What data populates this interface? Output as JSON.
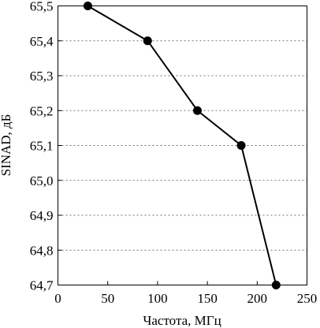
{
  "chart_data": {
    "type": "line",
    "xlabel": "Частота, МГц",
    "ylabel": "SINAD, дБ",
    "xlim": [
      0,
      250
    ],
    "ylim": [
      64.7,
      65.5
    ],
    "xticks": [
      0,
      50,
      100,
      150,
      200,
      250
    ],
    "xtick_labels": [
      "0",
      "50",
      "100",
      "150",
      "200",
      "250"
    ],
    "yticks": [
      64.7,
      64.8,
      64.9,
      65.0,
      65.1,
      65.2,
      65.3,
      65.4,
      65.5
    ],
    "ytick_labels": [
      "64,7",
      "64,8",
      "64,9",
      "65,0",
      "65,1",
      "65,2",
      "65,3",
      "65,4",
      "65,5"
    ],
    "grid": "horizontal dashed",
    "series": [
      {
        "x": [
          30,
          90,
          140,
          184,
          219
        ],
        "y": [
          65.5,
          65.4,
          65.2,
          65.1,
          64.7
        ]
      }
    ],
    "colors": {
      "line": "#000000",
      "marker": "#000000"
    }
  }
}
